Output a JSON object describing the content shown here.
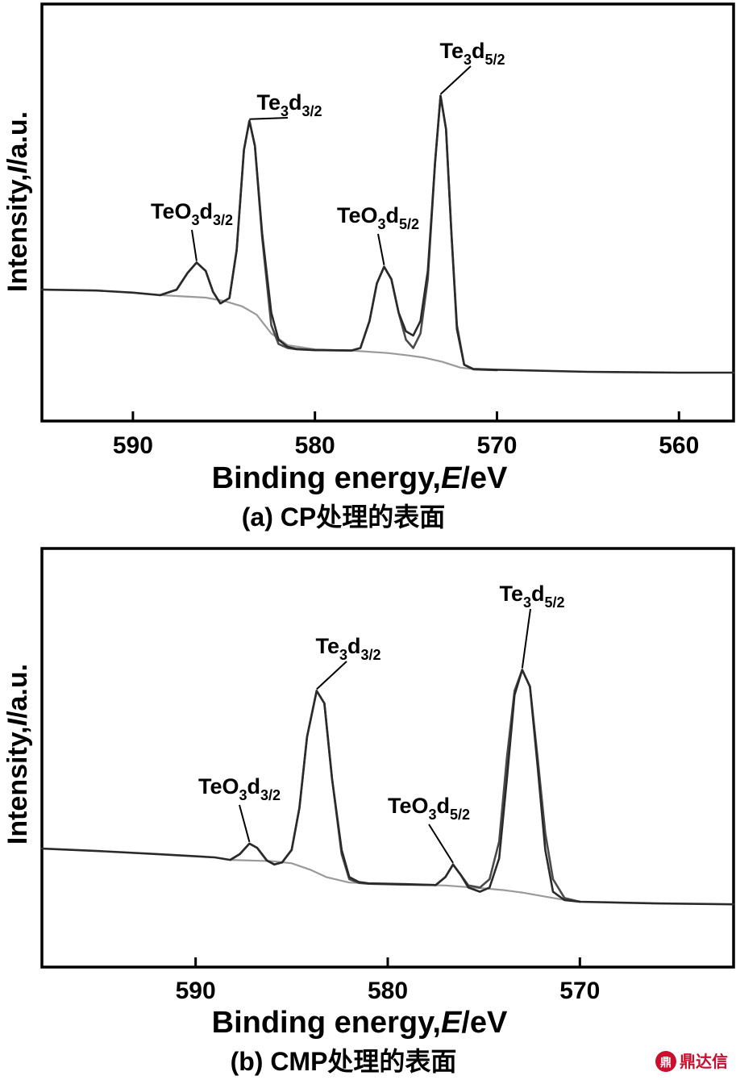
{
  "chart_data": [
    {
      "type": "line",
      "caption": "(a) CP处理的表面",
      "xlabel": "Binding energy,E/eV",
      "ylabel": "Intensity,I/a.u.",
      "xlim": [
        595,
        557
      ],
      "ylim": [
        0,
        100
      ],
      "x_reversed": true,
      "xticks": [
        590,
        580,
        570,
        560
      ],
      "series": [
        {
          "role": "measured",
          "color": "#2a2a2a",
          "points": [
            [
              595,
              31.5
            ],
            [
              592,
              31.3
            ],
            [
              590,
              30.8
            ],
            [
              588.5,
              30.2
            ],
            [
              587.6,
              31.5
            ],
            [
              587,
              35.5
            ],
            [
              586.5,
              38
            ],
            [
              586,
              36
            ],
            [
              585.6,
              31
            ],
            [
              585.2,
              28.2
            ],
            [
              584.7,
              29.5
            ],
            [
              584.3,
              41
            ],
            [
              583.9,
              65
            ],
            [
              583.6,
              72
            ],
            [
              583.3,
              66
            ],
            [
              582.9,
              45
            ],
            [
              582.4,
              26
            ],
            [
              582,
              19.5
            ],
            [
              581.5,
              17.8
            ],
            [
              581,
              17.3
            ],
            [
              580,
              17
            ],
            [
              578,
              16.9
            ],
            [
              577.5,
              17.5
            ],
            [
              577,
              24
            ],
            [
              576.6,
              33
            ],
            [
              576.2,
              37
            ],
            [
              575.8,
              34
            ],
            [
              575.4,
              26
            ],
            [
              575,
              21.5
            ],
            [
              574.6,
              20.5
            ],
            [
              574.2,
              24
            ],
            [
              573.8,
              36
            ],
            [
              573.4,
              62
            ],
            [
              573.1,
              78
            ],
            [
              572.8,
              70
            ],
            [
              572.5,
              45
            ],
            [
              572.2,
              22
            ],
            [
              571.8,
              13.5
            ],
            [
              571.3,
              12.5
            ],
            [
              570,
              12.3
            ],
            [
              565,
              11.8
            ],
            [
              560,
              11.6
            ],
            [
              557,
              11.6
            ]
          ]
        },
        {
          "role": "fit",
          "color": "#4a4a4a",
          "points": [
            [
              588.5,
              30.2
            ],
            [
              587.6,
              31.5
            ],
            [
              587,
              35.5
            ],
            [
              586.5,
              38
            ],
            [
              586,
              36
            ],
            [
              585.6,
              31
            ],
            [
              585.2,
              28.2
            ],
            [
              584.7,
              29.5
            ],
            [
              584.3,
              41
            ],
            [
              583.9,
              65
            ],
            [
              583.6,
              72
            ],
            [
              583.3,
              66
            ],
            [
              582.9,
              44
            ],
            [
              582.4,
              23
            ],
            [
              582,
              18.5
            ],
            [
              581.5,
              17.5
            ],
            [
              581,
              17.2
            ],
            [
              580,
              17
            ],
            [
              578,
              16.9
            ],
            [
              577.5,
              17.5
            ],
            [
              577,
              24
            ],
            [
              576.6,
              33
            ],
            [
              576.2,
              37
            ],
            [
              575.8,
              34
            ],
            [
              575.4,
              26
            ],
            [
              575,
              19.5
            ],
            [
              574.6,
              17.5
            ],
            [
              574.2,
              21
            ],
            [
              573.8,
              34
            ],
            [
              573.4,
              62
            ],
            [
              573.1,
              78
            ],
            [
              572.8,
              70
            ],
            [
              572.5,
              45
            ],
            [
              572.2,
              23
            ],
            [
              571.8,
              13.5
            ],
            [
              571.3,
              12.4
            ],
            [
              570,
              12.2
            ]
          ]
        },
        {
          "role": "background",
          "color": "#9a9a9a",
          "points": [
            [
              588.5,
              30.2
            ],
            [
              586,
              29.6
            ],
            [
              585,
              28.8
            ],
            [
              584,
              27.5
            ],
            [
              583.2,
              25.5
            ],
            [
              582.4,
              21
            ],
            [
              581.5,
              18.2
            ],
            [
              580,
              17.2
            ],
            [
              578,
              16.9
            ],
            [
              576,
              16.3
            ],
            [
              575,
              15.8
            ],
            [
              574,
              15.2
            ],
            [
              573,
              14.2
            ],
            [
              572,
              12.8
            ],
            [
              571,
              12.3
            ],
            [
              570,
              12.2
            ]
          ]
        }
      ],
      "annotations": [
        {
          "base": "TeO",
          "sub1": "3",
          "mid": "d",
          "sub2": "3/2",
          "x": 586.5,
          "y": 38
        },
        {
          "base": "Te",
          "sub1": "3",
          "mid": "d",
          "sub2": "3/2",
          "x": 583.6,
          "y": 72
        },
        {
          "base": "TeO",
          "sub1": "3",
          "mid": "d",
          "sub2": "5/2",
          "x": 576.2,
          "y": 37
        },
        {
          "base": "Te",
          "sub1": "3",
          "mid": "d",
          "sub2": "5/2",
          "x": 573.1,
          "y": 78
        }
      ]
    },
    {
      "type": "line",
      "caption": "(b) CMP处理的表面",
      "xlabel": "Binding energy,E/eV",
      "ylabel": "Intensity,I/a.u.",
      "xlim": [
        598,
        562
      ],
      "ylim": [
        0,
        100
      ],
      "x_reversed": true,
      "xticks": [
        590,
        580,
        570
      ],
      "series": [
        {
          "role": "measured",
          "color": "#2a2a2a",
          "points": [
            [
              598,
              28.3
            ],
            [
              595,
              27.7
            ],
            [
              592,
              27
            ],
            [
              589,
              26.2
            ],
            [
              588.2,
              25.6
            ],
            [
              587.7,
              27
            ],
            [
              587.2,
              29.5
            ],
            [
              586.8,
              28.5
            ],
            [
              586.3,
              25.5
            ],
            [
              585.9,
              24.5
            ],
            [
              585.5,
              25
            ],
            [
              585,
              28
            ],
            [
              584.6,
              38
            ],
            [
              584.2,
              55
            ],
            [
              583.7,
              66
            ],
            [
              583.3,
              63
            ],
            [
              582.9,
              45
            ],
            [
              582.4,
              28
            ],
            [
              582,
              21.5
            ],
            [
              581.5,
              20.3
            ],
            [
              581,
              20
            ],
            [
              579,
              19.8
            ],
            [
              577.5,
              19.6
            ],
            [
              577,
              21.5
            ],
            [
              576.6,
              24.5
            ],
            [
              576.2,
              22
            ],
            [
              575.8,
              19
            ],
            [
              575.2,
              18
            ],
            [
              574.7,
              19
            ],
            [
              574.2,
              26
            ],
            [
              573.8,
              45
            ],
            [
              573.4,
              65
            ],
            [
              573,
              71
            ],
            [
              572.6,
              67
            ],
            [
              572.2,
              48
            ],
            [
              571.8,
              28
            ],
            [
              571.4,
              18
            ],
            [
              570.8,
              16
            ],
            [
              570,
              15.6
            ],
            [
              566,
              15.2
            ],
            [
              562,
              15
            ]
          ]
        },
        {
          "role": "fit",
          "color": "#4a4a4a",
          "points": [
            [
              588.2,
              25.6
            ],
            [
              587.7,
              27
            ],
            [
              587.2,
              29.5
            ],
            [
              586.8,
              28.5
            ],
            [
              586.3,
              25.5
            ],
            [
              585.9,
              24.5
            ],
            [
              585.5,
              25
            ],
            [
              585,
              28
            ],
            [
              584.6,
              38
            ],
            [
              584.2,
              55
            ],
            [
              583.7,
              66
            ],
            [
              583.3,
              63
            ],
            [
              582.9,
              45
            ],
            [
              582.4,
              27
            ],
            [
              582,
              21
            ],
            [
              581.5,
              20.1
            ],
            [
              581,
              19.9
            ],
            [
              579,
              19.7
            ],
            [
              577.5,
              19.6
            ],
            [
              577,
              21.5
            ],
            [
              576.6,
              24.5
            ],
            [
              576.2,
              22
            ],
            [
              575.8,
              19.5
            ],
            [
              575.2,
              19
            ],
            [
              574.7,
              21
            ],
            [
              574.2,
              30
            ],
            [
              573.8,
              50
            ],
            [
              573.4,
              66
            ],
            [
              573,
              71
            ],
            [
              572.6,
              67
            ],
            [
              572.2,
              50
            ],
            [
              571.8,
              32
            ],
            [
              571.4,
              21
            ],
            [
              570.8,
              16.5
            ],
            [
              570,
              15.6
            ]
          ]
        },
        {
          "role": "background",
          "color": "#9a9a9a",
          "points": [
            [
              588.2,
              25.6
            ],
            [
              586,
              25.3
            ],
            [
              585,
              24.8
            ],
            [
              584,
              23.2
            ],
            [
              583.2,
              21.5
            ],
            [
              582,
              20.2
            ],
            [
              580,
              19.8
            ],
            [
              577,
              19.5
            ],
            [
              575,
              18.8
            ],
            [
              574,
              18.4
            ],
            [
              573,
              17.8
            ],
            [
              572,
              17
            ],
            [
              571,
              16.2
            ],
            [
              570,
              15.7
            ]
          ]
        }
      ],
      "annotations": [
        {
          "base": "TeO",
          "sub1": "3",
          "mid": "d",
          "sub2": "3/2",
          "x": 587.2,
          "y": 29.5
        },
        {
          "base": "Te",
          "sub1": "3",
          "mid": "d",
          "sub2": "3/2",
          "x": 583.7,
          "y": 66
        },
        {
          "base": "TeO",
          "sub1": "3",
          "mid": "d",
          "sub2": "5/2",
          "x": 576.6,
          "y": 24.5
        },
        {
          "base": "Te",
          "sub1": "3",
          "mid": "d",
          "sub2": "5/2",
          "x": 573,
          "y": 71
        }
      ]
    }
  ],
  "watermark": {
    "glyph": "鼎",
    "text": "鼎达信"
  }
}
